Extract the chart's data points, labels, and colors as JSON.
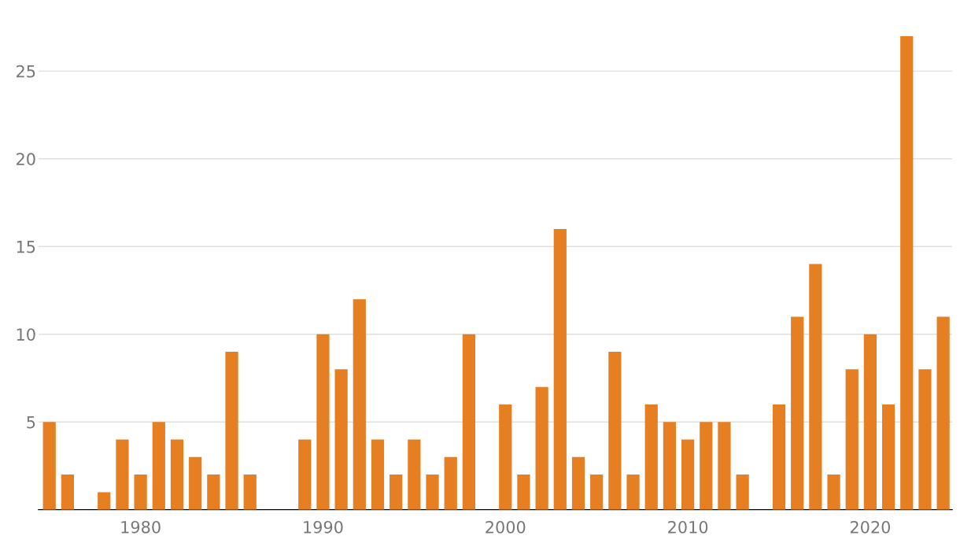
{
  "chart_data": {
    "type": "bar",
    "x": [
      1975,
      1976,
      1977,
      1978,
      1979,
      1980,
      1981,
      1982,
      1983,
      1984,
      1985,
      1986,
      1987,
      1988,
      1989,
      1990,
      1991,
      1992,
      1993,
      1994,
      1995,
      1996,
      1997,
      1998,
      1999,
      2000,
      2001,
      2002,
      2003,
      2004,
      2005,
      2006,
      2007,
      2008,
      2009,
      2010,
      2011,
      2012,
      2013,
      2014,
      2015,
      2016,
      2017,
      2018,
      2019,
      2020,
      2021,
      2022,
      2023,
      2024
    ],
    "values": [
      5,
      2,
      null,
      1,
      4,
      2,
      5,
      4,
      3,
      2,
      9,
      2,
      null,
      null,
      4,
      10,
      8,
      12,
      4,
      2,
      4,
      2,
      3,
      10,
      null,
      6,
      2,
      7,
      16,
      3,
      2,
      9,
      2,
      6,
      5,
      4,
      5,
      5,
      2,
      null,
      6,
      11,
      14,
      2,
      8,
      10,
      6,
      27,
      8,
      11
    ],
    "color": "#e67e22",
    "xlim": [
      1974.4,
      2024.5
    ],
    "xticks": [
      1980,
      1990,
      2000,
      2010,
      2020
    ],
    "ylim": [
      0,
      27
    ],
    "yticks": [
      5,
      10,
      15,
      20,
      25
    ],
    "grid": "y"
  }
}
